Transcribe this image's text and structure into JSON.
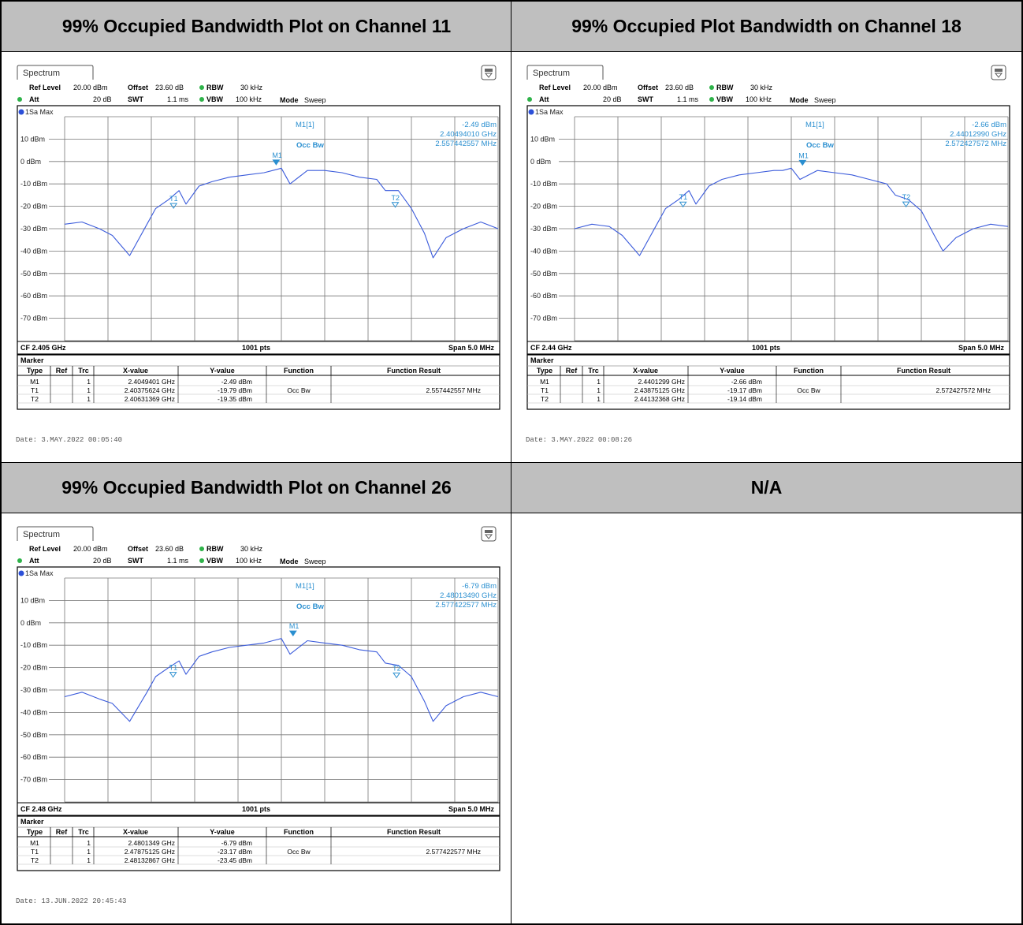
{
  "panels": [
    {
      "heading": "99% Occupied Bandwidth Plot on Channel 11",
      "date": "Date: 3.MAY.2022  00:05:40",
      "tab_label": "Spectrum",
      "settings": {
        "ref_level_label": "Ref Level",
        "ref_level": "20.00 dBm",
        "att_label": "Att",
        "att": "20 dB",
        "offset_label": "Offset",
        "offset": "23.60 dB",
        "swt_label": "SWT",
        "swt": "1.1 ms",
        "rbw_label": "RBW",
        "rbw": "30 kHz",
        "vbw_label": "VBW",
        "vbw": "100 kHz",
        "mode_label": "Mode",
        "mode": "Sweep"
      },
      "trace_label": "1Sa Max",
      "readout": {
        "m1_label": "M1[1]",
        "m1_level": "-2.49 dBm",
        "m1_freq": "2.40494010 GHz",
        "occbw_label": "Occ Bw",
        "occbw_value": "2.557442557 MHz"
      },
      "footer": {
        "cf": "CF 2.405 GHz",
        "pts": "1001 pts",
        "span": "Span 5.0 MHz"
      },
      "marker_title": "Marker",
      "table_headers": [
        "Type",
        "Ref",
        "Trc",
        "X-value",
        "Y-value",
        "Function",
        "Function Result"
      ],
      "table_rows": [
        [
          "M1",
          "",
          "1",
          "2.4049401 GHz",
          "-2.49 dBm",
          "",
          ""
        ],
        [
          "T1",
          "",
          "1",
          "2.40375624 GHz",
          "-19.79 dBm",
          "Occ Bw",
          "2.557442557 MHz"
        ],
        [
          "T2",
          "",
          "1",
          "2.40631369 GHz",
          "-19.35 dBm",
          "",
          ""
        ]
      ]
    },
    {
      "heading": "99% Occupied Plot Bandwidth on Channel 18",
      "date": "Date: 3.MAY.2022  00:08:26",
      "tab_label": "Spectrum",
      "settings": {
        "ref_level_label": "Ref Level",
        "ref_level": "20.00 dBm",
        "att_label": "Att",
        "att": "20 dB",
        "offset_label": "Offset",
        "offset": "23.60 dB",
        "swt_label": "SWT",
        "swt": "1.1 ms",
        "rbw_label": "RBW",
        "rbw": "30 kHz",
        "vbw_label": "VBW",
        "vbw": "100 kHz",
        "mode_label": "Mode",
        "mode": "Sweep"
      },
      "trace_label": "1Sa Max",
      "readout": {
        "m1_label": "M1[1]",
        "m1_level": "-2.66 dBm",
        "m1_freq": "2.44012990 GHz",
        "occbw_label": "Occ Bw",
        "occbw_value": "2.572427572 MHz"
      },
      "footer": {
        "cf": "CF 2.44 GHz",
        "pts": "1001 pts",
        "span": "Span 5.0 MHz"
      },
      "marker_title": "Marker",
      "table_headers": [
        "Type",
        "Ref",
        "Trc",
        "X-value",
        "Y-value",
        "Function",
        "Function Result"
      ],
      "table_rows": [
        [
          "M1",
          "",
          "1",
          "2.4401299 GHz",
          "-2.66 dBm",
          "",
          ""
        ],
        [
          "T1",
          "",
          "1",
          "2.43875125 GHz",
          "-19.17 dBm",
          "Occ Bw",
          "2.572427572 MHz"
        ],
        [
          "T2",
          "",
          "1",
          "2.44132368 GHz",
          "-19.14 dBm",
          "",
          ""
        ]
      ]
    },
    {
      "heading": "99% Occupied Bandwidth Plot on Channel 26",
      "date": "Date: 13.JUN.2022  20:45:43",
      "tab_label": "Spectrum",
      "settings": {
        "ref_level_label": "Ref Level",
        "ref_level": "20.00 dBm",
        "att_label": "Att",
        "att": "20 dB",
        "offset_label": "Offset",
        "offset": "23.60 dB",
        "swt_label": "SWT",
        "swt": "1.1 ms",
        "rbw_label": "RBW",
        "rbw": "30 kHz",
        "vbw_label": "VBW",
        "vbw": "100 kHz",
        "mode_label": "Mode",
        "mode": "Sweep"
      },
      "trace_label": "1Sa Max",
      "readout": {
        "m1_label": "M1[1]",
        "m1_level": "-6.79 dBm",
        "m1_freq": "2.48013490 GHz",
        "occbw_label": "Occ Bw",
        "occbw_value": "2.577422577 MHz"
      },
      "footer": {
        "cf": "CF 2.48 GHz",
        "pts": "1001 pts",
        "span": "Span 5.0 MHz"
      },
      "marker_title": "Marker",
      "table_headers": [
        "Type",
        "Ref",
        "Trc",
        "X-value",
        "Y-value",
        "Function",
        "Function Result"
      ],
      "table_rows": [
        [
          "M1",
          "",
          "1",
          "2.4801349 GHz",
          "-6.79 dBm",
          "",
          ""
        ],
        [
          "T1",
          "",
          "1",
          "2.47875125 GHz",
          "-23.17 dBm",
          "Occ Bw",
          "2.577422577 MHz"
        ],
        [
          "T2",
          "",
          "1",
          "2.48132867 GHz",
          "-23.45 dBm",
          "",
          ""
        ]
      ]
    },
    {
      "heading": "N/A"
    }
  ],
  "chart_data": [
    {
      "type": "line",
      "series": [
        {
          "name": "1Sa Max"
        }
      ],
      "center_freq_ghz": 2.405,
      "span_mhz": 5.0,
      "points": 1001,
      "ylim": [
        -80,
        20
      ],
      "yticks": [
        "10 dBm",
        "0 dBm",
        "-10 dBm",
        "-20 dBm",
        "-30 dBm",
        "-40 dBm",
        "-50 dBm",
        "-60 dBm",
        "-70 dBm"
      ],
      "yticks_values": [
        10,
        0,
        -10,
        -20,
        -30,
        -40,
        -50,
        -60,
        -70
      ],
      "trace_mhz": [
        -2.5,
        -2.3,
        -2.1,
        -1.95,
        -1.75,
        -1.55,
        -1.45,
        -1.3,
        -1.18,
        -1.1,
        -0.95,
        -0.8,
        -0.6,
        -0.4,
        -0.2,
        -0.1,
        0,
        0.1,
        0.3,
        0.5,
        0.7,
        0.9,
        1.1,
        1.2,
        1.35,
        1.5,
        1.65,
        1.75,
        1.9,
        2.1,
        2.3,
        2.5
      ],
      "trace_dbm": [
        -28,
        -27,
        -30,
        -33,
        -42,
        -28,
        -21,
        -17,
        -13,
        -19,
        -11,
        -9,
        -7,
        -6,
        -5,
        -4,
        -3,
        -10,
        -4,
        -4,
        -5,
        -7,
        -8,
        -13,
        -13,
        -21,
        -32,
        -43,
        -34,
        -30,
        -27,
        -30
      ],
      "markers": [
        {
          "label": "M1",
          "x_ghz": 2.4049401,
          "y_dbm": -2.49
        },
        {
          "label": "T1",
          "x_ghz": 2.40375624,
          "y_dbm": -19.79
        },
        {
          "label": "T2",
          "x_ghz": 2.40631369,
          "y_dbm": -19.35
        }
      ]
    },
    {
      "type": "line",
      "series": [
        {
          "name": "1Sa Max"
        }
      ],
      "center_freq_ghz": 2.44,
      "span_mhz": 5.0,
      "points": 1001,
      "ylim": [
        -80,
        20
      ],
      "yticks": [
        "10 dBm",
        "0 dBm",
        "-10 dBm",
        "-20 dBm",
        "-30 dBm",
        "-40 dBm",
        "-50 dBm",
        "-60 dBm",
        "-70 dBm"
      ],
      "yticks_values": [
        10,
        0,
        -10,
        -20,
        -30,
        -40,
        -50,
        -60,
        -70
      ],
      "trace_mhz": [
        -2.5,
        -2.3,
        -2.1,
        -1.95,
        -1.75,
        -1.55,
        -1.45,
        -1.3,
        -1.18,
        -1.1,
        -0.95,
        -0.8,
        -0.6,
        -0.4,
        -0.2,
        -0.1,
        0,
        0.1,
        0.3,
        0.5,
        0.7,
        0.9,
        1.1,
        1.2,
        1.35,
        1.5,
        1.65,
        1.75,
        1.9,
        2.1,
        2.3,
        2.5
      ],
      "trace_dbm": [
        -30,
        -28,
        -29,
        -33,
        -42,
        -28,
        -21,
        -17,
        -13,
        -19,
        -11,
        -8,
        -6,
        -5,
        -4,
        -4,
        -3,
        -8,
        -4,
        -5,
        -6,
        -8,
        -10,
        -15,
        -17,
        -22,
        -33,
        -40,
        -34,
        -30,
        -28,
        -29
      ],
      "markers": [
        {
          "label": "M1",
          "x_ghz": 2.4401299,
          "y_dbm": -2.66
        },
        {
          "label": "T1",
          "x_ghz": 2.43875125,
          "y_dbm": -19.17
        },
        {
          "label": "T2",
          "x_ghz": 2.44132368,
          "y_dbm": -19.14
        }
      ]
    },
    {
      "type": "line",
      "series": [
        {
          "name": "1Sa Max"
        }
      ],
      "center_freq_ghz": 2.48,
      "span_mhz": 5.0,
      "points": 1001,
      "ylim": [
        -80,
        20
      ],
      "yticks": [
        "10 dBm",
        "0 dBm",
        "-10 dBm",
        "-20 dBm",
        "-30 dBm",
        "-40 dBm",
        "-50 dBm",
        "-60 dBm",
        "-70 dBm"
      ],
      "yticks_values": [
        10,
        0,
        -10,
        -20,
        -30,
        -40,
        -50,
        -60,
        -70
      ],
      "trace_mhz": [
        -2.5,
        -2.3,
        -2.1,
        -1.95,
        -1.75,
        -1.55,
        -1.45,
        -1.3,
        -1.18,
        -1.1,
        -0.95,
        -0.8,
        -0.6,
        -0.4,
        -0.2,
        -0.1,
        0,
        0.1,
        0.3,
        0.5,
        0.7,
        0.9,
        1.1,
        1.2,
        1.35,
        1.5,
        1.65,
        1.75,
        1.9,
        2.1,
        2.3,
        2.5
      ],
      "trace_dbm": [
        -33,
        -31,
        -34,
        -36,
        -44,
        -31,
        -24,
        -20,
        -17,
        -23,
        -15,
        -13,
        -11,
        -10,
        -9,
        -8,
        -7,
        -14,
        -8,
        -9,
        -10,
        -12,
        -13,
        -18,
        -19,
        -24,
        -35,
        -44,
        -37,
        -33,
        -31,
        -33
      ],
      "markers": [
        {
          "label": "M1",
          "x_ghz": 2.4801349,
          "y_dbm": -6.79
        },
        {
          "label": "T1",
          "x_ghz": 2.47875125,
          "y_dbm": -23.17
        },
        {
          "label": "T2",
          "x_ghz": 2.48132867,
          "y_dbm": -23.45
        }
      ]
    }
  ],
  "colors": {
    "trace": "#3b5bdb",
    "marker": "#2a8fd0",
    "header_bg": "#bfbfbf"
  }
}
